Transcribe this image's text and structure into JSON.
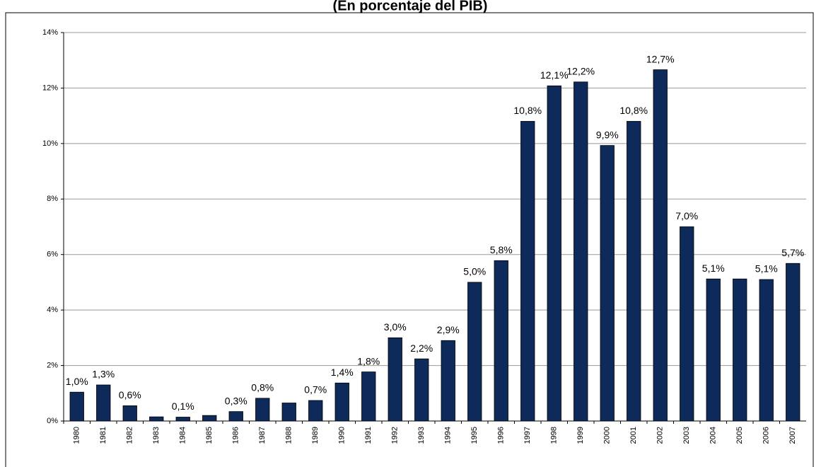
{
  "chart_data": {
    "type": "bar",
    "title": "(En porcentaje del PIB)",
    "categories": [
      "1980",
      "1981",
      "1982",
      "1983",
      "1984",
      "1985",
      "1986",
      "1987",
      "1988",
      "1989",
      "1990",
      "1991",
      "1992",
      "1993",
      "1994",
      "1995",
      "1996",
      "1997",
      "1998",
      "1999",
      "2000",
      "2001",
      "2002",
      "2003",
      "2004",
      "2005",
      "2006",
      "2007"
    ],
    "values": [
      1.04,
      1.3,
      0.55,
      0.15,
      0.14,
      0.2,
      0.34,
      0.82,
      0.65,
      0.74,
      1.37,
      1.77,
      3.0,
      2.24,
      2.9,
      5.0,
      5.78,
      10.8,
      12.08,
      12.22,
      9.93,
      10.8,
      12.66,
      7.0,
      5.12,
      5.12,
      5.1,
      5.68
    ],
    "value_labels": [
      "1,0%",
      "1,3%",
      "0,6%",
      null,
      "0,1%",
      null,
      "0,3%",
      "0,8%",
      null,
      "0,7%",
      "1,4%",
      "1,8%",
      "3,0%",
      "2,2%",
      "2,9%",
      "5,0%",
      "5,8%",
      "10,8%",
      "12,1%",
      "12,2%",
      "9,9%",
      "10,8%",
      "12,7%",
      "7,0%",
      "5,1%",
      null,
      "5,1%",
      "5,7%"
    ],
    "color": "#0d2a5a",
    "ylim": [
      0,
      14
    ],
    "yticks": [
      {
        "value": 0,
        "label": "0%"
      },
      {
        "value": 2,
        "label": "2%"
      },
      {
        "value": 4,
        "label": "4%"
      },
      {
        "value": 6,
        "label": "6%"
      },
      {
        "value": 8,
        "label": "8%"
      },
      {
        "value": 10,
        "label": "10%"
      },
      {
        "value": 12,
        "label": "12%"
      },
      {
        "value": 14,
        "label": "14%"
      }
    ],
    "grid": true
  }
}
